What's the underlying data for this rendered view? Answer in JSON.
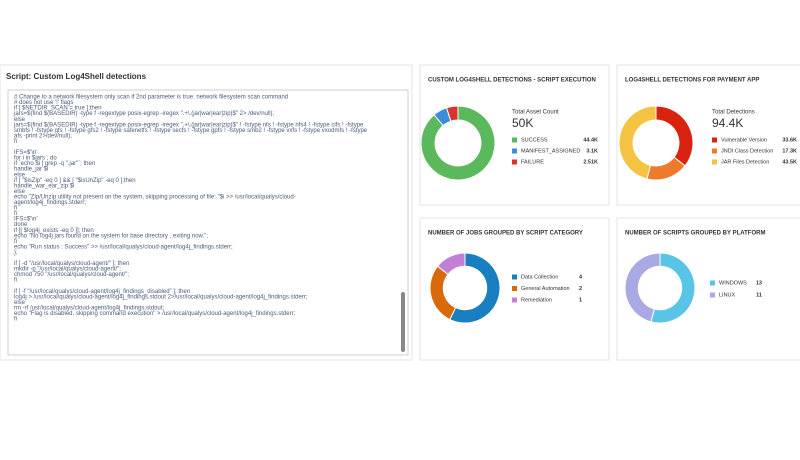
{
  "script_panel": {
    "title": "Script: Custom Log4Shell detections",
    "code_blocks": [
      [
        "# Change to a network filesystem only scan if 2nd parameter is true. network filesystem scan command",
        "# does not use '!' flags",
        "if [ $NETDIR_SCAN = true ];then",
        "jars=$(find $(BASEDIR) -type f -regextype posix-egrep -iregex \".+\\.(jar|war|ear|zip)$\" 2> /dev/null);",
        "else",
        "jars=$(find $(BASEDIR) -type f -regextype posix-egrep -iregex \".+\\.(jar|war|ear|zip)$\" ! -fstype nfs ! -fstype nfs4 ! -fstype cifs ! -fstype",
        "smbfs ! -fstype gfs ! -fstype gfs2 ! -fstype safenetfs ! -fstype secfs ! -fstype gpfs ! -fstype smb2 ! -fstype vxfs ! -fstype vxodmfs ! -fstype",
        "afs -print 2>/dev/null);",
        "fi"
      ],
      [
        "IFS=$'\\n'",
        "for i in $jars ; do",
        "if `echo $i | grep -q \".jar\"`; then",
        "handle_jar $i",
        "else",
        "if [ \"$isZip\" -eq 0 ] && [ \"$isUnZip\" -eq 0 ];then",
        "handle_war_ear_zip $i",
        "else",
        "echo \"Zip/Unzip utility not present on the system, skipping processing of file: \"$i >> /usr/local/qualys/cloud-",
        "agent/log4j_findings.stderr;",
        "fi",
        "fi",
        "IFS=$'\\n'",
        "done",
        "if [[ $log4j_exists -eq 0 ]]; then",
        "echo \"No log4j jars found on the system for base directory , exiting now.\";",
        "fi",
        "echo \"Run status : Success\" >> /usr/local/qualys/cloud-agent/log4j_findings.stderr;",
        "};"
      ],
      [
        "if [ -d \"/usr/local/qualys/cloud-agent/\" ]; then",
        "mkdir -p \"/usr/local/qualys/cloud-agent/\";",
        "chmod 750 \"/usr/local/qualys/cloud-agent/\";",
        "fi"
      ],
      [
        "if [ -f \"/usr/local/qualys/cloud-agent/log4j_findings_disabled\" ]; then",
        "log4j > /usr/local/qualys/cloud-agent/log4j_findings.stdout 2>/usr/local/qualys/cloud-agent/log4j_findings.stderr;",
        "else",
        "rm -rf /usr/local/qualys/cloud-agent/log4j_findings.stdout;",
        "echo \"Flag is disabled, skipping command execution\" > /usr/local/qualys/cloud-agent/log4j_findings.stderr;",
        "fi"
      ]
    ]
  },
  "widgets": [
    {
      "title": "CUSTOM LOG4SHELL DETECTIONS - SCRIPT EXECUTION",
      "total_label": "Total Asset Count",
      "total": "50K",
      "items": [
        {
          "name": "SUCCESS",
          "color": "#5cb85c",
          "value": 44400,
          "value_label": "44.4K"
        },
        {
          "name": "MANIFEST_ASSIGNED",
          "color": "#3a8ddb",
          "value": 3100,
          "value_label": "3.1K"
        },
        {
          "name": "FAILURE",
          "color": "#d9342b",
          "value": 2510,
          "value_label": "2.51K"
        }
      ]
    },
    {
      "title": "LOG4SHELL DETECTIONS FOR PAYMENT APP",
      "total_label": "Total Detections",
      "total": "94.4K",
      "items": [
        {
          "name": "Vulnerable Version",
          "color": "#d9230f",
          "value": 33600,
          "value_label": "33.6K"
        },
        {
          "name": "JNDI Class Detection",
          "color": "#ee7a2b",
          "value": 17300,
          "value_label": "17.3K"
        },
        {
          "name": "JAR Files Detection",
          "color": "#f5c342",
          "value": 43500,
          "value_label": "43.5K"
        }
      ]
    },
    {
      "title": "NUMBER OF JOBS GROUPED BY SCRIPT CATEGORY",
      "items": [
        {
          "name": "Data Collection",
          "color": "#1a7fc1",
          "value": 4
        },
        {
          "name": "General Automation",
          "color": "#d96a0c",
          "value": 2
        },
        {
          "name": "Remediation",
          "color": "#c27fd6",
          "value": 1
        }
      ]
    },
    {
      "title": "NUMBER OF SCRIPTS GROUPED BY PLATFORM",
      "items": [
        {
          "name": "WINDOWS",
          "color": "#58c4e6",
          "value": 13
        },
        {
          "name": "LINUX",
          "color": "#a9a9e3",
          "value": 11
        }
      ]
    }
  ]
}
